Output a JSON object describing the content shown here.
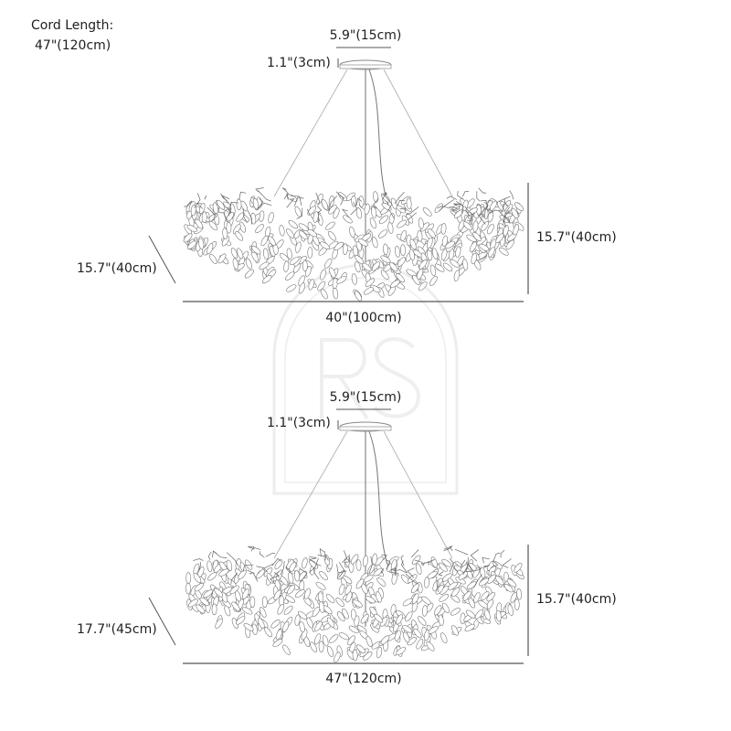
{
  "cord": {
    "title": "Cord Length:",
    "value": "47\"(120cm)"
  },
  "watermark": "RS",
  "products": [
    {
      "canopy_width": "5.9\"(15cm)",
      "canopy_height": "1.1\"(3cm)",
      "height": "15.7\"(40cm)",
      "depth": "15.7\"(40cm)",
      "width": "40\"(100cm)"
    },
    {
      "canopy_width": "5.9\"(15cm)",
      "canopy_height": "1.1\"(3cm)",
      "height": "15.7\"(40cm)",
      "depth": "17.7\"(45cm)",
      "width": "47\"(120cm)"
    }
  ],
  "colors": {
    "line": "#555555",
    "watermark": "#ececec"
  }
}
